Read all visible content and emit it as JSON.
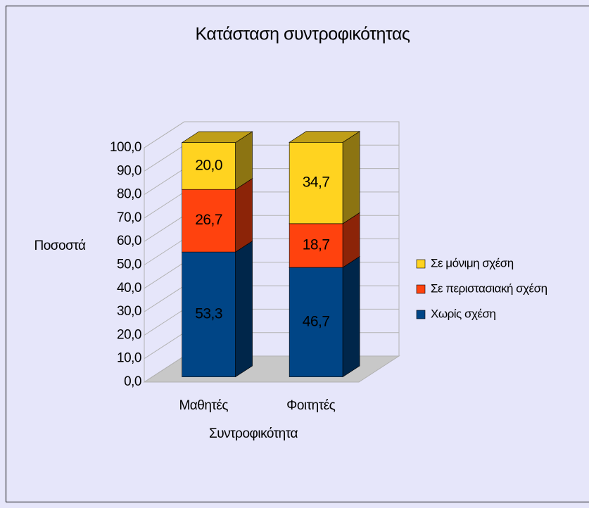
{
  "chart_data": {
    "type": "bar3d_stacked",
    "title": "Κατάσταση συντροφικότητας",
    "y_axis_label": "Ποσοστά",
    "x_axis_label": "Συντροφικότητα",
    "categories": [
      "Μαθητές",
      "Φοιτητές"
    ],
    "series": [
      {
        "name": "Χωρίς σχέση",
        "color": "#004586",
        "values": [
          53.3,
          46.7
        ],
        "value_labels": [
          "53,3",
          "46,7"
        ]
      },
      {
        "name": "Σε περιστασιακή σχέση",
        "color": "#ff420e",
        "values": [
          26.7,
          18.7
        ],
        "value_labels": [
          "26,7",
          "18,7"
        ]
      },
      {
        "name": "Σε μόνιμη σχέση",
        "color": "#ffd320",
        "values": [
          20.0,
          34.7
        ],
        "value_labels": [
          "20,0",
          "34,7"
        ]
      }
    ],
    "ylim": [
      0,
      100
    ],
    "yticks": [
      {
        "value": 0,
        "label": "0,0"
      },
      {
        "value": 10,
        "label": "10,0"
      },
      {
        "value": 20,
        "label": "20,0"
      },
      {
        "value": 30,
        "label": "30,0"
      },
      {
        "value": 40,
        "label": "40,0"
      },
      {
        "value": 50,
        "label": "50,0"
      },
      {
        "value": 60,
        "label": "60,0"
      },
      {
        "value": 70,
        "label": "70,0"
      },
      {
        "value": 80,
        "label": "80,0"
      },
      {
        "value": 90,
        "label": "90,0"
      },
      {
        "value": 100,
        "label": "100,0"
      }
    ],
    "grid": true,
    "legend": "right"
  }
}
